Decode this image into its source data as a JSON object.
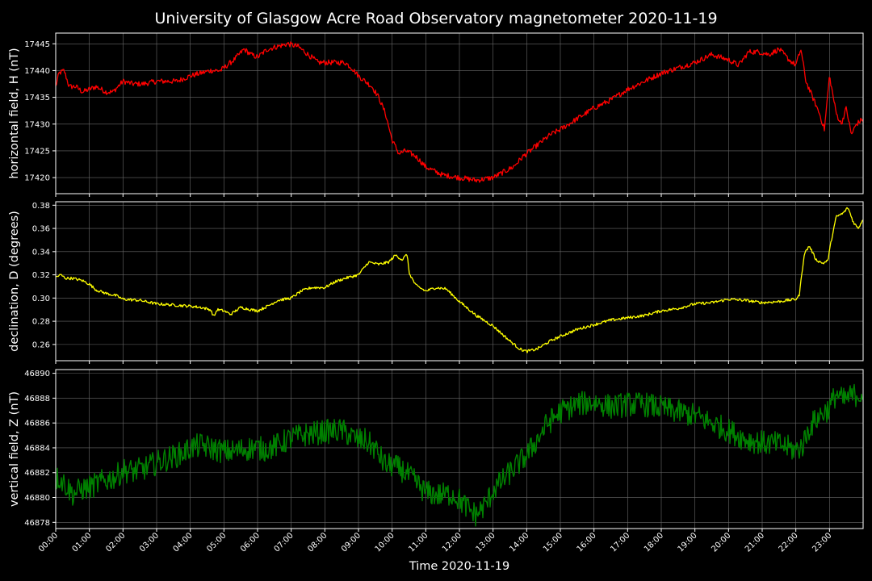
{
  "chart_data": {
    "title": "University of Glasgow Acre Road Observatory magnetometer 2020-11-19",
    "xlabel": "Time 2020-11-19",
    "x_tick_labels": [
      "00:00",
      "01:00",
      "02:00",
      "03:00",
      "04:00",
      "05:00",
      "06:00",
      "07:00",
      "08:00",
      "09:00",
      "10:00",
      "11:00",
      "12:00",
      "13:00",
      "14:00",
      "15:00",
      "16:00",
      "17:00",
      "18:00",
      "19:00",
      "20:00",
      "21:00",
      "22:00",
      "23:00"
    ],
    "x_range_hours": [
      0,
      24
    ],
    "grid": true,
    "panels": [
      {
        "type": "line",
        "ylabel": "horizontal field, H (nT)",
        "color": "#ff0000",
        "ylim": [
          17417,
          17447
        ],
        "yticks": [
          17420,
          17425,
          17430,
          17435,
          17440,
          17445
        ],
        "ytick_labels": [
          "17420",
          "17425",
          "17430",
          "17435",
          "17440",
          "17445"
        ],
        "noise": 0.5,
        "x": [
          0,
          0.1,
          0.25,
          0.4,
          0.6,
          0.8,
          1.0,
          1.2,
          1.5,
          1.7,
          2.0,
          2.3,
          2.6,
          3.0,
          3.3,
          3.6,
          4.0,
          4.3,
          4.6,
          4.9,
          5.1,
          5.3,
          5.6,
          5.8,
          6.0,
          6.3,
          6.6,
          6.9,
          7.2,
          7.5,
          7.8,
          8.2,
          8.6,
          8.8,
          9.0,
          9.2,
          9.4,
          9.6,
          9.8,
          10.0,
          10.2,
          10.4,
          10.7,
          11.0,
          11.5,
          12.0,
          12.5,
          13.0,
          13.3,
          13.6,
          13.9,
          14.3,
          14.7,
          15.0,
          15.5,
          16.0,
          16.5,
          17.0,
          17.5,
          18.0,
          18.5,
          19.0,
          19.5,
          20.0,
          20.3,
          20.6,
          20.9,
          21.2,
          21.5,
          21.8,
          22.0,
          22.15,
          22.3,
          22.5,
          22.7,
          22.85,
          23.0,
          23.2,
          23.35,
          23.5,
          23.65,
          23.8,
          24.0
        ],
        "y": [
          17437,
          17439.5,
          17440,
          17437,
          17437,
          17436,
          17436.5,
          17437,
          17436,
          17436,
          17438,
          17437.5,
          17437.5,
          17438,
          17438,
          17438,
          17439,
          17439.5,
          17440,
          17440,
          17441,
          17442,
          17444,
          17443,
          17442.5,
          17444,
          17444.5,
          17445,
          17444.5,
          17443,
          17441.5,
          17441.5,
          17441.5,
          17440.5,
          17439,
          17438,
          17437,
          17435,
          17432,
          17427,
          17424.5,
          17425,
          17424,
          17422,
          17420.5,
          17420,
          17419.5,
          17420,
          17421,
          17422,
          17424,
          17426,
          17428,
          17429,
          17431,
          17433,
          17434.5,
          17436.5,
          17438,
          17439.5,
          17440.5,
          17441.5,
          17443,
          17442,
          17441,
          17443.5,
          17443.5,
          17443,
          17444,
          17442,
          17441,
          17444,
          17438,
          17435,
          17432,
          17429,
          17439,
          17432,
          17430,
          17433,
          17428,
          17430,
          17431
        ]
      },
      {
        "type": "line",
        "ylabel": "declination, D (degrees)",
        "color": "#ffff00",
        "ylim": [
          0.246,
          0.383
        ],
        "yticks": [
          0.26,
          0.28,
          0.3,
          0.32,
          0.34,
          0.36,
          0.38
        ],
        "ytick_labels": [
          "0.26",
          "0.28",
          "0.30",
          "0.32",
          "0.34",
          "0.36",
          "0.38"
        ],
        "noise": 0.0012,
        "x": [
          0,
          0.15,
          0.3,
          0.5,
          0.8,
          1.0,
          1.2,
          1.5,
          1.8,
          2.0,
          2.5,
          3.0,
          3.5,
          4.0,
          4.3,
          4.6,
          4.7,
          4.8,
          5.0,
          5.2,
          5.5,
          5.8,
          6.0,
          6.3,
          6.6,
          7.0,
          7.3,
          7.6,
          8.0,
          8.3,
          8.6,
          9.0,
          9.3,
          9.6,
          9.9,
          10.1,
          10.3,
          10.45,
          10.5,
          10.7,
          11.0,
          11.3,
          11.6,
          12.0,
          12.5,
          13.0,
          13.5,
          13.8,
          14.0,
          14.3,
          14.7,
          15.0,
          15.5,
          16.0,
          16.5,
          17.0,
          17.5,
          18.0,
          18.5,
          19.0,
          19.5,
          20.0,
          20.5,
          21.0,
          21.5,
          22.0,
          22.1,
          22.25,
          22.4,
          22.6,
          22.8,
          22.95,
          23.05,
          23.2,
          23.4,
          23.55,
          23.7,
          23.85,
          24.0
        ],
        "y": [
          0.318,
          0.32,
          0.317,
          0.317,
          0.315,
          0.312,
          0.307,
          0.304,
          0.302,
          0.299,
          0.298,
          0.295,
          0.294,
          0.293,
          0.292,
          0.29,
          0.284,
          0.29,
          0.289,
          0.286,
          0.292,
          0.29,
          0.289,
          0.293,
          0.298,
          0.3,
          0.306,
          0.309,
          0.309,
          0.314,
          0.317,
          0.32,
          0.331,
          0.329,
          0.331,
          0.337,
          0.333,
          0.338,
          0.322,
          0.311,
          0.306,
          0.309,
          0.308,
          0.297,
          0.285,
          0.276,
          0.263,
          0.256,
          0.254,
          0.256,
          0.263,
          0.267,
          0.273,
          0.277,
          0.281,
          0.283,
          0.285,
          0.289,
          0.291,
          0.295,
          0.296,
          0.299,
          0.298,
          0.296,
          0.297,
          0.299,
          0.302,
          0.338,
          0.345,
          0.333,
          0.33,
          0.332,
          0.349,
          0.37,
          0.373,
          0.378,
          0.366,
          0.36,
          0.368
        ]
      },
      {
        "type": "line",
        "ylabel": "vertical field, Z (nT)",
        "color": "#008000",
        "ylim": [
          46877.5,
          46890.3
        ],
        "yticks": [
          46878,
          46880,
          46882,
          46884,
          46886,
          46888,
          46890
        ],
        "ytick_labels": [
          "46878",
          "46880",
          "46882",
          "46884",
          "46886",
          "46888",
          "46890"
        ],
        "noise": 1.0,
        "x": [
          0,
          0.1,
          0.3,
          0.5,
          0.8,
          1.0,
          1.3,
          1.6,
          1.8,
          2.0,
          2.3,
          2.6,
          3.0,
          3.4,
          3.8,
          4.0,
          4.3,
          4.6,
          5.0,
          5.3,
          5.6,
          5.9,
          6.2,
          6.5,
          6.8,
          7.0,
          7.5,
          8.0,
          8.5,
          9.0,
          9.2,
          9.5,
          9.8,
          10.0,
          10.3,
          10.6,
          11.0,
          11.4,
          11.8,
          12.0,
          12.3,
          12.5,
          12.8,
          13.0,
          13.3,
          13.6,
          14.0,
          14.3,
          14.6,
          15.0,
          15.5,
          16.0,
          16.5,
          17.0,
          17.5,
          18.0,
          18.5,
          19.0,
          19.5,
          20.0,
          20.5,
          21.0,
          21.5,
          22.0,
          22.2,
          22.4,
          22.6,
          22.8,
          23.0,
          23.2,
          23.4,
          23.6,
          23.8,
          24.0
        ],
        "y": [
          46881.5,
          46881.6,
          46881,
          46880.3,
          46880.7,
          46880.8,
          46881.2,
          46881.5,
          46881.7,
          46882.2,
          46882.1,
          46882.3,
          46882.8,
          46883.2,
          46883.6,
          46884,
          46884.2,
          46884,
          46883.7,
          46883.7,
          46883.9,
          46884,
          46883.9,
          46884.1,
          46884.5,
          46884.8,
          46885.1,
          46885.3,
          46885.4,
          46884.6,
          46884.6,
          46883.9,
          46882.6,
          46882.6,
          46882.2,
          46881.5,
          46880.4,
          46880.2,
          46880.3,
          46879.8,
          46879,
          46878.6,
          46879.5,
          46880.6,
          46881.4,
          46882.3,
          46883.4,
          46884.6,
          46885.9,
          46886.9,
          46887.5,
          46887.7,
          46887.3,
          46887.5,
          46887.5,
          46887.2,
          46886.9,
          46886.6,
          46886,
          46885.4,
          46884.7,
          46884.4,
          46884.3,
          46883.8,
          46884.2,
          46885.6,
          46886.3,
          46886.8,
          46887.2,
          46888.4,
          46887.8,
          46888.1,
          46888.3,
          46888.4
        ]
      }
    ]
  }
}
